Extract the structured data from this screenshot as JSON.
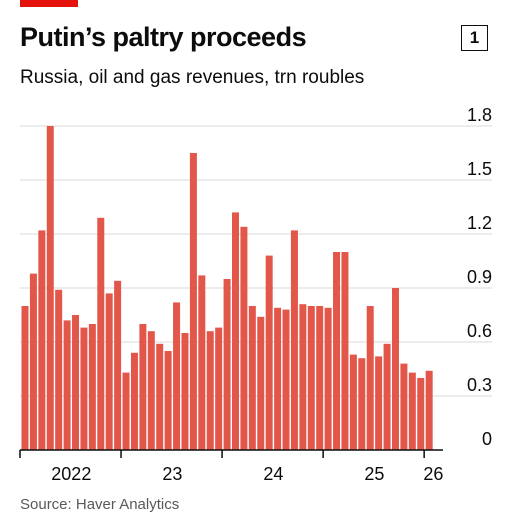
{
  "header": {
    "title": "Putin’s paltry proceeds",
    "chart_number": "1",
    "subtitle": "Russia, oil and gas revenues, trn roubles"
  },
  "source": "Source: Haver Analytics",
  "colors": {
    "bar": "#e3574a",
    "accent": "#e3120b",
    "grid": "#d9d9d9",
    "axis": "#0c0c0c",
    "text": "#0c0c0c"
  },
  "chart_data": {
    "type": "bar",
    "title": "Putin’s paltry proceeds",
    "subtitle": "Russia, oil and gas revenues, trn roubles",
    "xlabel": "",
    "ylabel": "",
    "ylim": [
      0,
      1.8
    ],
    "y_ticks": [
      "0",
      "0.3",
      "0.6",
      "0.9",
      "1.2",
      "1.5",
      "1.8"
    ],
    "y_axis_position": "right",
    "grid": true,
    "x_tick_labels": [
      {
        "label": "2022",
        "index": 5.5
      },
      {
        "label": "23",
        "index": 17.5
      },
      {
        "label": "24",
        "index": 29.5
      },
      {
        "label": "25",
        "index": 41.5
      },
      {
        "label": "26",
        "index": 48.5
      }
    ],
    "periods": [
      "2022-01",
      "2022-02",
      "2022-03",
      "2022-04",
      "2022-05",
      "2022-06",
      "2022-07",
      "2022-08",
      "2022-09",
      "2022-10",
      "2022-11",
      "2022-12",
      "2023-01",
      "2023-02",
      "2023-03",
      "2023-04",
      "2023-05",
      "2023-06",
      "2023-07",
      "2023-08",
      "2023-09",
      "2023-10",
      "2023-11",
      "2023-12",
      "2024-01",
      "2024-02",
      "2024-03",
      "2024-04",
      "2024-05",
      "2024-06",
      "2024-07",
      "2024-08",
      "2024-09",
      "2024-10",
      "2024-11",
      "2024-12",
      "2025-01",
      "2025-02",
      "2025-03",
      "2025-04",
      "2025-05",
      "2025-06",
      "2025-07",
      "2025-08",
      "2025-09",
      "2025-10",
      "2025-11",
      "2025-12",
      "2026-01"
    ],
    "values": [
      0.8,
      0.98,
      1.22,
      1.8,
      0.89,
      0.72,
      0.75,
      0.68,
      0.7,
      1.29,
      0.87,
      0.94,
      0.43,
      0.54,
      0.7,
      0.66,
      0.59,
      0.55,
      0.82,
      0.65,
      1.65,
      0.97,
      0.66,
      0.68,
      0.95,
      1.32,
      1.24,
      0.8,
      0.74,
      1.08,
      0.79,
      0.78,
      1.22,
      0.81,
      0.8,
      0.8,
      0.79,
      1.1,
      1.1,
      0.53,
      0.51,
      0.8,
      0.52,
      0.59,
      0.9,
      0.48,
      0.43,
      0.4,
      0.44
    ]
  }
}
